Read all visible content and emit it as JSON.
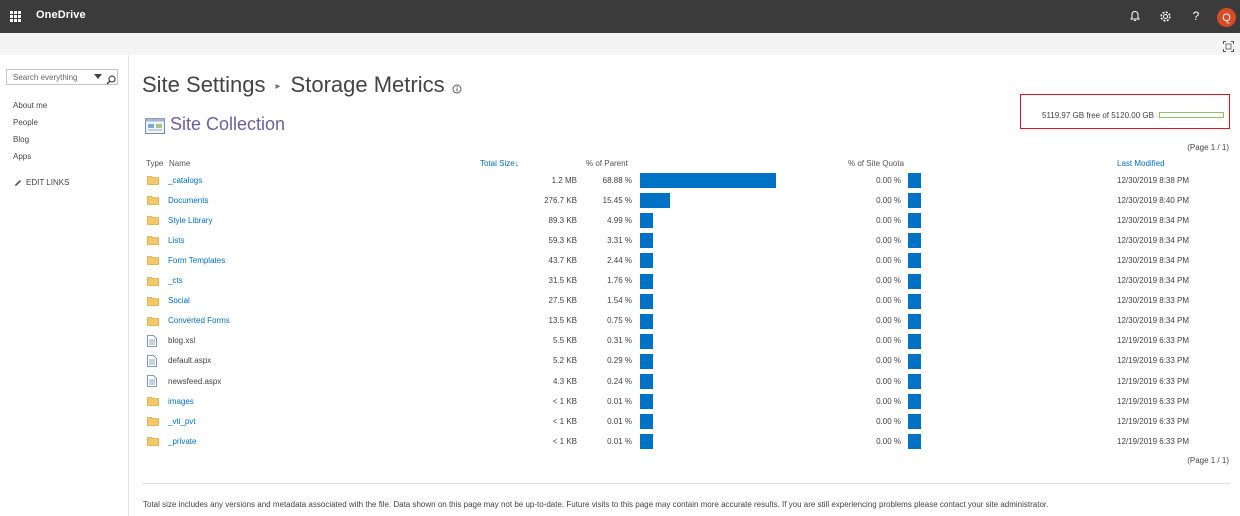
{
  "suite_bar": {
    "app_name": "OneDrive",
    "avatar_initial": "Q",
    "help_glyph": "?",
    "icons": [
      "waffle-icon",
      "bell-icon",
      "gear-icon",
      "help-icon"
    ]
  },
  "search": {
    "placeholder": "Search everything"
  },
  "left_nav": {
    "items": [
      {
        "label": "About me"
      },
      {
        "label": "People"
      },
      {
        "label": "Blog"
      },
      {
        "label": "Apps"
      }
    ],
    "edit_links": "EDIT LINKS"
  },
  "page": {
    "title_part1": "Site Settings",
    "title_sep": "▸",
    "title_part2": "Storage Metrics",
    "section_title": "Site Collection"
  },
  "quota": {
    "text": "5119.97 GB free of 5120.00 GB",
    "used_fraction": 1e-05
  },
  "pager": {
    "top": "(Page 1 / 1)",
    "bottom": "(Page 1 / 1)"
  },
  "table": {
    "headers": {
      "type": "Type",
      "name": "Name",
      "total_size": "Total Size",
      "sort_glyph": "↓",
      "pct_parent": "% of Parent",
      "pct_quota": "% of Site Quota",
      "last_modified": "Last Modified"
    },
    "rows": [
      {
        "kind": "folder",
        "name": "_catalogs",
        "size": "1.2 MB",
        "pct_parent": "68.88 %",
        "parent_value": 68.88,
        "pct_quota": "0.00 %",
        "modified": "12/30/2019 8:38 PM"
      },
      {
        "kind": "folder",
        "name": "Documents",
        "size": "276.7 KB",
        "pct_parent": "15.45 %",
        "parent_value": 15.45,
        "pct_quota": "0.00 %",
        "modified": "12/30/2019 8:40 PM"
      },
      {
        "kind": "folder",
        "name": "Style Library",
        "size": "89.3 KB",
        "pct_parent": "4.99 %",
        "parent_value": 4.99,
        "pct_quota": "0.00 %",
        "modified": "12/30/2019 8:34 PM"
      },
      {
        "kind": "folder",
        "name": "Lists",
        "size": "59.3 KB",
        "pct_parent": "3.31 %",
        "parent_value": 3.31,
        "pct_quota": "0.00 %",
        "modified": "12/30/2019 8:34 PM"
      },
      {
        "kind": "folder",
        "name": "Form Templates",
        "size": "43.7 KB",
        "pct_parent": "2.44 %",
        "parent_value": 2.44,
        "pct_quota": "0.00 %",
        "modified": "12/30/2019 8:34 PM"
      },
      {
        "kind": "folder",
        "name": "_cts",
        "size": "31.5 KB",
        "pct_parent": "1.76 %",
        "parent_value": 1.76,
        "pct_quota": "0.00 %",
        "modified": "12/30/2019 8:34 PM"
      },
      {
        "kind": "folder",
        "name": "Social",
        "size": "27.5 KB",
        "pct_parent": "1.54 %",
        "parent_value": 1.54,
        "pct_quota": "0.00 %",
        "modified": "12/30/2019 8:33 PM"
      },
      {
        "kind": "folder",
        "name": "Converted Forms",
        "size": "13.5 KB",
        "pct_parent": "0.75 %",
        "parent_value": 0.75,
        "pct_quota": "0.00 %",
        "modified": "12/30/2019 8:34 PM"
      },
      {
        "kind": "file",
        "name": "blog.xsl",
        "size": "5.5 KB",
        "pct_parent": "0.31 %",
        "parent_value": 0.31,
        "pct_quota": "0.00 %",
        "modified": "12/19/2019 6:33 PM"
      },
      {
        "kind": "file",
        "name": "default.aspx",
        "size": "5.2 KB",
        "pct_parent": "0.29 %",
        "parent_value": 0.29,
        "pct_quota": "0.00 %",
        "modified": "12/19/2019 6:33 PM"
      },
      {
        "kind": "file",
        "name": "newsfeed.aspx",
        "size": "4.3 KB",
        "pct_parent": "0.24 %",
        "parent_value": 0.24,
        "pct_quota": "0.00 %",
        "modified": "12/19/2019 6:33 PM"
      },
      {
        "kind": "folder",
        "name": "images",
        "size": "< 1 KB",
        "pct_parent": "0.01 %",
        "parent_value": 0.01,
        "pct_quota": "0.00 %",
        "modified": "12/19/2019 6:33 PM"
      },
      {
        "kind": "folder",
        "name": "_vti_pvt",
        "size": "< 1 KB",
        "pct_parent": "0.01 %",
        "parent_value": 0.01,
        "pct_quota": "0.00 %",
        "modified": "12/19/2019 6:33 PM"
      },
      {
        "kind": "folder",
        "name": "_private",
        "size": "< 1 KB",
        "pct_parent": "0.01 %",
        "parent_value": 0.01,
        "pct_quota": "0.00 %",
        "modified": "12/19/2019 6:33 PM"
      }
    ]
  },
  "footnote": "Total size includes any versions and metadata associated with the file. Data shown on this page may not be up-to-date. Future visits to this page may contain more accurate results. If you are still experiencing problems please contact your site administrator.",
  "colors": {
    "suite_bar": "#3b3b3b",
    "link": "#0072c6",
    "bar": "#0072c6",
    "avatar": "#d74b27",
    "quota_highlight": "#e81123",
    "quota_bar": "#8cc36b",
    "section_title": "#6b5fa3"
  }
}
